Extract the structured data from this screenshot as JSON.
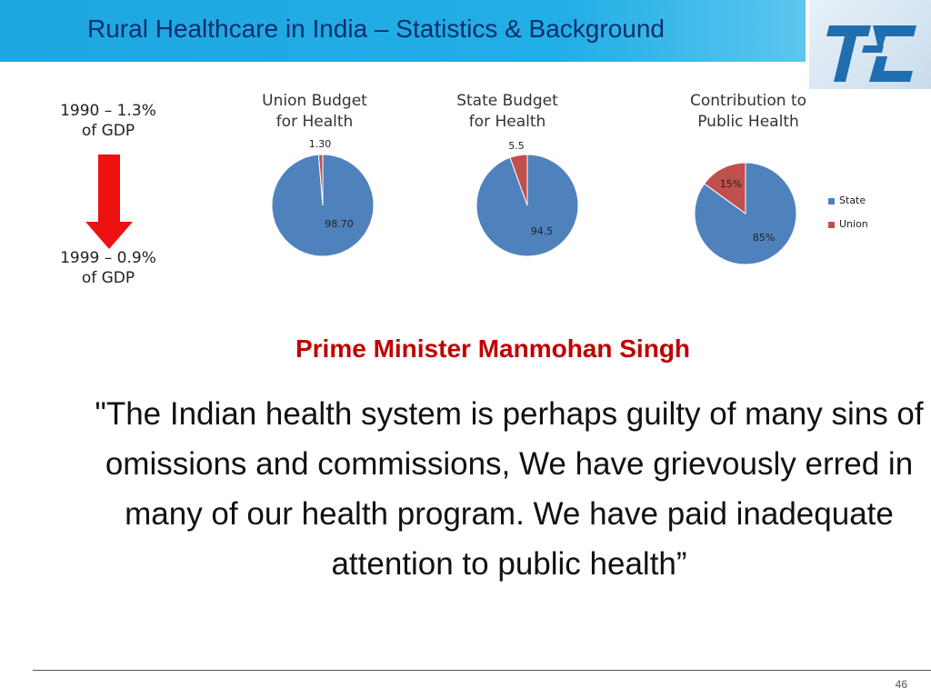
{
  "slide": {
    "title": "Rural Healthcare in India – Statistics & Background",
    "page_number": "46"
  },
  "gdp": {
    "from_text": "1990 – 1.3%\nof GDP",
    "from_line1": "1990 – 1.3%",
    "from_line2": "of GDP",
    "to_line1": "1999 – 0.9%",
    "to_line2": "of GDP"
  },
  "quote_block": {
    "heading": "Prime Minister Manmohan Singh",
    "text": "\"The Indian health system is perhaps guilty of many sins of omissions and commissions, We have grievously erred in many of our health program. We have paid inadequate attention to public health”"
  },
  "colors": {
    "state": "#4f81bd",
    "union": "#c0504d",
    "arrow": "#ee1111"
  },
  "chart_data": [
    {
      "type": "pie",
      "title": "Union Budget for Health",
      "title_line1": "Union Budget",
      "title_line2": "for Health",
      "slices": [
        {
          "label": "",
          "value": 98.7,
          "value_label": "98.70",
          "color": "#4f81bd"
        },
        {
          "label": "",
          "value": 1.3,
          "value_label": "1.30",
          "color": "#c0504d"
        }
      ]
    },
    {
      "type": "pie",
      "title": "State Budget for Health",
      "title_line1": "State Budget",
      "title_line2": "for Health",
      "slices": [
        {
          "label": "",
          "value": 94.5,
          "value_label": "94.5",
          "color": "#4f81bd"
        },
        {
          "label": "",
          "value": 5.5,
          "value_label": "5.5",
          "color": "#c0504d"
        }
      ]
    },
    {
      "type": "pie",
      "title": "Contribution to Public Health",
      "title_line1": "Contribution to",
      "title_line2": "Public Health",
      "legend_position": "right",
      "slices": [
        {
          "label": "State",
          "value": 85,
          "value_label": "85%",
          "color": "#4f81bd"
        },
        {
          "label": "Union",
          "value": 15,
          "value_label": "15%",
          "color": "#c0504d"
        }
      ]
    }
  ]
}
